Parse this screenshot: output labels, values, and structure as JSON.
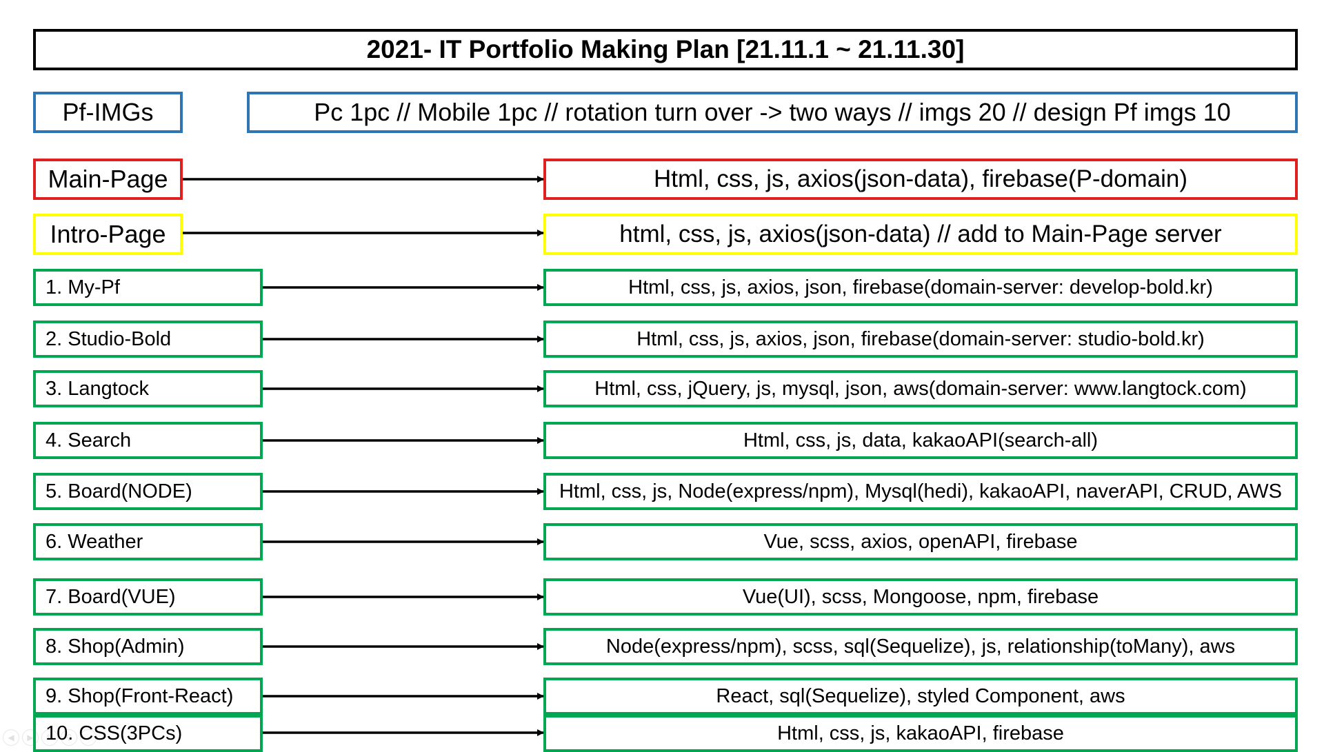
{
  "title": "2021- IT Portfolio Making Plan [21.11.1 ~ 21.11.30]",
  "pf_imgs": {
    "label": "Pf-IMGs",
    "description": "Pc 1pc // Mobile 1pc // rotation turn over -> two ways // imgs 20 // design Pf imgs 10",
    "color": "#2e75b6"
  },
  "main_page": {
    "label": "Main-Page",
    "description": "Html, css, js, axios(json-data), firebase(P-domain)",
    "color": "#e02020"
  },
  "intro_page": {
    "label": "Intro-Page",
    "description": "html, css, js, axios(json-data) // add to Main-Page server",
    "color": "#ffff00"
  },
  "projects_color": "#00a650",
  "projects": [
    {
      "name": "1. My-Pf",
      "stack": "Html, css, js, axios, json, firebase(domain-server: develop-bold.kr)"
    },
    {
      "name": "2. Studio-Bold",
      "stack": "Html, css, js, axios, json, firebase(domain-server: studio-bold.kr)"
    },
    {
      "name": "3. Langtock",
      "stack": "Html, css, jQuery, js, mysql, json, aws(domain-server: www.langtock.com)"
    },
    {
      "name": "4. Search",
      "stack": "Html, css, js, data, kakaoAPI(search-all)"
    },
    {
      "name": "5. Board(NODE)",
      "stack": "Html, css, js, Node(express/npm), Mysql(hedi), kakaoAPI, naverAPI, CRUD, AWS"
    },
    {
      "name": "6. Weather",
      "stack": "Vue, scss, axios, openAPI, firebase"
    },
    {
      "name": "7. Board(VUE)",
      "stack": "Vue(UI), scss, Mongoose, npm, firebase"
    },
    {
      "name": "8. Shop(Admin)",
      "stack": "Node(express/npm), scss, sql(Sequelize), js, relationship(toMany), aws"
    },
    {
      "name": "9. Shop(Front-React)",
      "stack": "React, sql(Sequelize), styled Component, aws"
    },
    {
      "name": "10. CSS(3PCs)",
      "stack": "Html, css, js, kakaoAPI, firebase"
    }
  ]
}
